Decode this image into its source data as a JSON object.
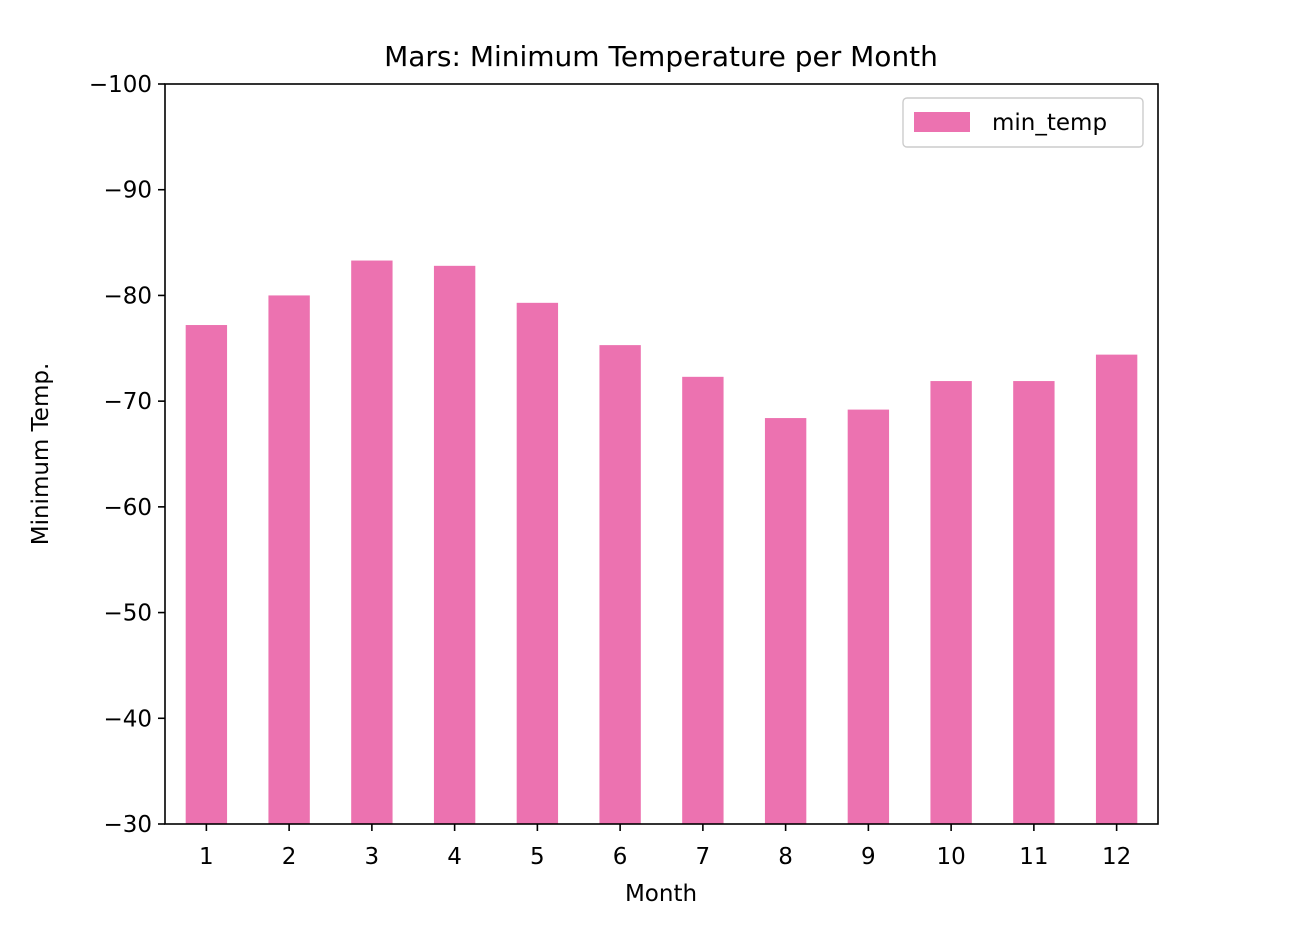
{
  "chart_data": {
    "type": "bar",
    "title": "Mars: Minimum Temperature per Month",
    "xlabel": "Month",
    "ylabel": "Minimum Temp.",
    "categories": [
      "1",
      "2",
      "3",
      "4",
      "5",
      "6",
      "7",
      "8",
      "9",
      "10",
      "11",
      "12"
    ],
    "series": [
      {
        "name": "min_temp",
        "color": "#ec72b0",
        "values": [
          -77.2,
          -80.0,
          -83.3,
          -82.8,
          -79.3,
          -75.3,
          -72.3,
          -68.4,
          -69.2,
          -71.9,
          -71.9,
          -74.4
        ]
      }
    ],
    "ylim": [
      -30,
      -100
    ],
    "yticks": [
      -100,
      -90,
      -80,
      -70,
      -60,
      -50,
      -40,
      -30
    ],
    "ytick_labels": [
      "−100",
      "−90",
      "−80",
      "−70",
      "−60",
      "−50",
      "−40",
      "−30"
    ],
    "y_axis_inverted": true,
    "grid": false,
    "legend_position": "top-right"
  }
}
